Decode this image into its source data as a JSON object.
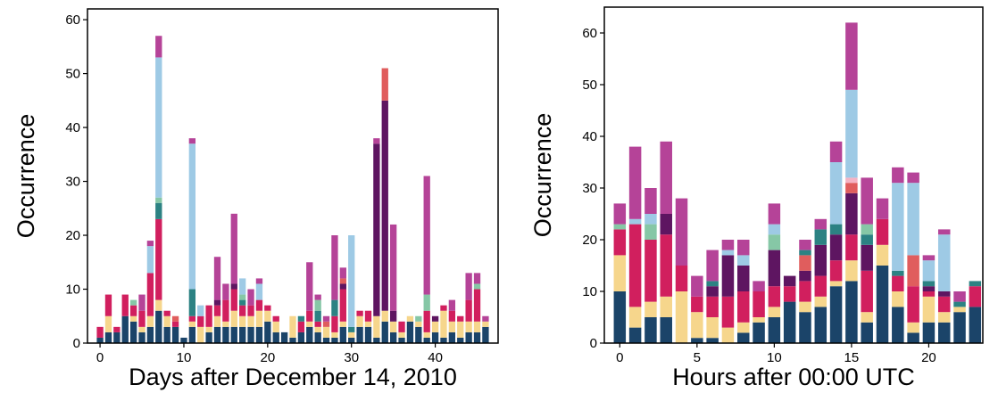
{
  "stack_colors": [
    "#1b4469",
    "#f6d68c",
    "#d11f5e",
    "#5e1561",
    "#e05d5d",
    "#2c8283",
    "#86c7a6",
    "#f5b3c4",
    "#9ecae5",
    "#b54398"
  ],
  "chart_data": [
    {
      "type": "bar",
      "stacked": true,
      "title": "",
      "xlabel": "Days after December 14, 2010",
      "ylabel": "Occurrence",
      "xlim": [
        -1.5,
        47.5
      ],
      "ylim": [
        0,
        62
      ],
      "xticks": [
        0,
        10,
        20,
        30,
        40
      ],
      "yticks": [
        0,
        10,
        20,
        30,
        40,
        50,
        60
      ],
      "x": [
        0,
        1,
        2,
        3,
        4,
        5,
        6,
        7,
        8,
        9,
        10,
        11,
        12,
        13,
        14,
        15,
        16,
        17,
        18,
        19,
        20,
        21,
        22,
        23,
        24,
        25,
        26,
        27,
        28,
        29,
        30,
        31,
        32,
        33,
        34,
        35,
        36,
        37,
        38,
        39,
        40,
        41,
        42,
        43,
        44,
        45,
        46
      ],
      "series": [
        {
          "values": [
            1,
            2,
            2,
            5,
            4,
            2,
            3,
            6,
            3,
            3,
            1,
            3,
            0,
            2,
            3,
            3,
            3,
            3,
            3,
            3,
            4,
            2,
            2,
            1,
            2,
            3,
            2,
            1,
            1,
            3,
            1,
            3,
            3,
            1,
            4,
            2,
            1,
            4,
            3,
            1,
            2,
            1,
            2,
            1,
            2,
            2,
            3
          ]
        },
        {
          "values": [
            0,
            3,
            0,
            0,
            1,
            1,
            2,
            2,
            2,
            0,
            0,
            1,
            3,
            1,
            2,
            1,
            3,
            2,
            2,
            3,
            2,
            2,
            0,
            4,
            0,
            1,
            1,
            2,
            1,
            1,
            1,
            2,
            1,
            4,
            2,
            2,
            1,
            1,
            1,
            1,
            2,
            5,
            2,
            3,
            2,
            2,
            1
          ]
        },
        {
          "values": [
            2,
            4,
            1,
            4,
            2,
            3,
            8,
            15,
            1,
            1,
            0,
            1,
            2,
            4,
            2,
            4,
            4,
            2,
            2,
            2,
            1,
            1,
            0,
            0,
            2,
            2,
            1,
            0,
            3,
            6,
            0,
            1,
            2,
            0,
            0,
            0,
            2,
            0,
            0,
            4,
            0,
            1,
            2,
            1,
            4,
            6,
            0
          ]
        },
        {
          "values": [
            0,
            0,
            0,
            0,
            0,
            0,
            0,
            0,
            0,
            0,
            0,
            0,
            0,
            0,
            1,
            0,
            1,
            0,
            0,
            0,
            0,
            0,
            0,
            0,
            0,
            0,
            0,
            0,
            0,
            1,
            0,
            0,
            0,
            32,
            39,
            2,
            0,
            0,
            0,
            0,
            1,
            0,
            0,
            0,
            0,
            0,
            0
          ]
        },
        {
          "values": [
            0,
            0,
            0,
            0,
            0,
            0,
            0,
            0,
            0,
            1,
            0,
            0,
            0,
            0,
            0,
            0,
            0,
            0,
            0,
            0,
            0,
            0,
            0,
            0,
            0,
            0,
            0,
            1,
            0,
            1,
            0,
            0,
            0,
            0,
            6,
            0,
            0,
            0,
            0,
            0,
            0,
            0,
            0,
            0,
            0,
            0,
            0
          ]
        },
        {
          "values": [
            0,
            0,
            0,
            0,
            0,
            0,
            0,
            3,
            0,
            0,
            0,
            5,
            0,
            0,
            0,
            0,
            0,
            1,
            0,
            0,
            0,
            0,
            0,
            0,
            1,
            0,
            2,
            0,
            3,
            0,
            1,
            0,
            0,
            0,
            0,
            0,
            0,
            0,
            0,
            0,
            0,
            0,
            0,
            0,
            0,
            0,
            0
          ]
        },
        {
          "values": [
            0,
            0,
            0,
            0,
            1,
            0,
            0,
            1,
            0,
            0,
            0,
            0,
            0,
            0,
            0,
            0,
            0,
            1,
            0,
            0,
            0,
            0,
            0,
            0,
            0,
            0,
            2,
            0,
            0,
            0,
            0,
            0,
            0,
            0,
            0,
            0,
            0,
            0,
            1,
            3,
            0,
            0,
            0,
            0,
            0,
            1,
            0
          ]
        },
        {
          "values": [
            0,
            0,
            0,
            0,
            0,
            0,
            0,
            0,
            0,
            0,
            0,
            0,
            0,
            0,
            0,
            0,
            0,
            0,
            0,
            0,
            0,
            0,
            0,
            0,
            0,
            0,
            0,
            0,
            0,
            0,
            0,
            0,
            0,
            0,
            0,
            0,
            0,
            0,
            0,
            0,
            0,
            0,
            0,
            0,
            0,
            0,
            0
          ]
        },
        {
          "values": [
            0,
            0,
            0,
            0,
            0,
            0,
            5,
            26,
            0,
            0,
            0,
            27,
            2,
            0,
            0,
            0,
            0,
            3,
            0,
            3,
            0,
            0,
            0,
            0,
            0,
            0,
            0,
            0,
            0,
            0,
            17,
            0,
            0,
            0,
            0,
            0,
            0,
            0,
            0,
            0,
            0,
            0,
            0,
            0,
            0,
            0,
            0
          ]
        },
        {
          "values": [
            0,
            0,
            0,
            0,
            0,
            3,
            1,
            4,
            0,
            0,
            0,
            1,
            0,
            0,
            8,
            3,
            13,
            0,
            3,
            1,
            0,
            0,
            0,
            0,
            0,
            9,
            1,
            1,
            12,
            2,
            0,
            0,
            0,
            1,
            0,
            16,
            0,
            0,
            0,
            22,
            0,
            0,
            2,
            0,
            5,
            2,
            1
          ]
        }
      ]
    },
    {
      "type": "bar",
      "stacked": true,
      "title": "",
      "xlabel": "Hours after 00:00 UTC",
      "ylabel": "Occurrence",
      "xlim": [
        -1,
        23.5
      ],
      "ylim": [
        0,
        65
      ],
      "xticks": [
        0,
        5,
        10,
        15,
        20
      ],
      "yticks": [
        0,
        10,
        20,
        30,
        40,
        50,
        60
      ],
      "x": [
        0,
        1,
        2,
        3,
        4,
        5,
        6,
        7,
        8,
        9,
        10,
        11,
        12,
        13,
        14,
        15,
        16,
        17,
        18,
        19,
        20,
        21,
        22,
        23
      ],
      "series": [
        {
          "values": [
            10,
            3,
            5,
            5,
            0,
            1,
            1,
            0,
            2,
            4,
            5,
            8,
            6,
            7,
            11,
            12,
            4,
            15,
            7,
            2,
            4,
            4,
            6,
            7
          ]
        },
        {
          "values": [
            7,
            4,
            3,
            4,
            10,
            5,
            4,
            3,
            2,
            1,
            2,
            0,
            2,
            2,
            1,
            4,
            2,
            4,
            3,
            2,
            5,
            2,
            1,
            0
          ]
        },
        {
          "values": [
            5,
            16,
            12,
            12,
            5,
            3,
            4,
            6,
            6,
            5,
            4,
            3,
            4,
            4,
            4,
            5,
            8,
            5,
            3,
            7,
            1,
            3,
            0,
            4
          ]
        },
        {
          "values": [
            0,
            0,
            0,
            4,
            0,
            0,
            2,
            8,
            5,
            0,
            7,
            2,
            2,
            6,
            5,
            8,
            5,
            0,
            0,
            0,
            1,
            1,
            0,
            0
          ]
        },
        {
          "values": [
            0,
            0,
            0,
            0,
            0,
            0,
            0,
            0,
            0,
            0,
            0,
            0,
            3,
            0,
            0,
            2,
            0,
            0,
            0,
            6,
            0,
            0,
            0,
            0
          ]
        },
        {
          "values": [
            0,
            0,
            0,
            0,
            0,
            0,
            1,
            0,
            0,
            0,
            0,
            0,
            1,
            3,
            2,
            0,
            2,
            0,
            1,
            0,
            1,
            0,
            1,
            1
          ]
        },
        {
          "values": [
            1,
            0,
            3,
            0,
            0,
            0,
            0,
            0,
            0,
            0,
            3,
            0,
            0,
            0,
            0,
            0,
            2,
            0,
            0,
            0,
            0,
            0,
            0,
            0
          ]
        },
        {
          "values": [
            0,
            0,
            0,
            0,
            0,
            0,
            0,
            0,
            0,
            0,
            0,
            0,
            0,
            0,
            0,
            1,
            0,
            0,
            0,
            0,
            0,
            0,
            0,
            0
          ]
        },
        {
          "values": [
            0,
            1,
            2,
            0,
            0,
            0,
            0,
            1,
            2,
            0,
            2,
            0,
            0,
            0,
            12,
            17,
            0,
            0,
            17,
            14,
            4,
            11,
            0,
            0
          ]
        },
        {
          "values": [
            4,
            14,
            5,
            14,
            13,
            4,
            6,
            2,
            3,
            2,
            4,
            0,
            2,
            2,
            4,
            13,
            9,
            4,
            3,
            2,
            1,
            1,
            2,
            0
          ]
        }
      ]
    }
  ]
}
